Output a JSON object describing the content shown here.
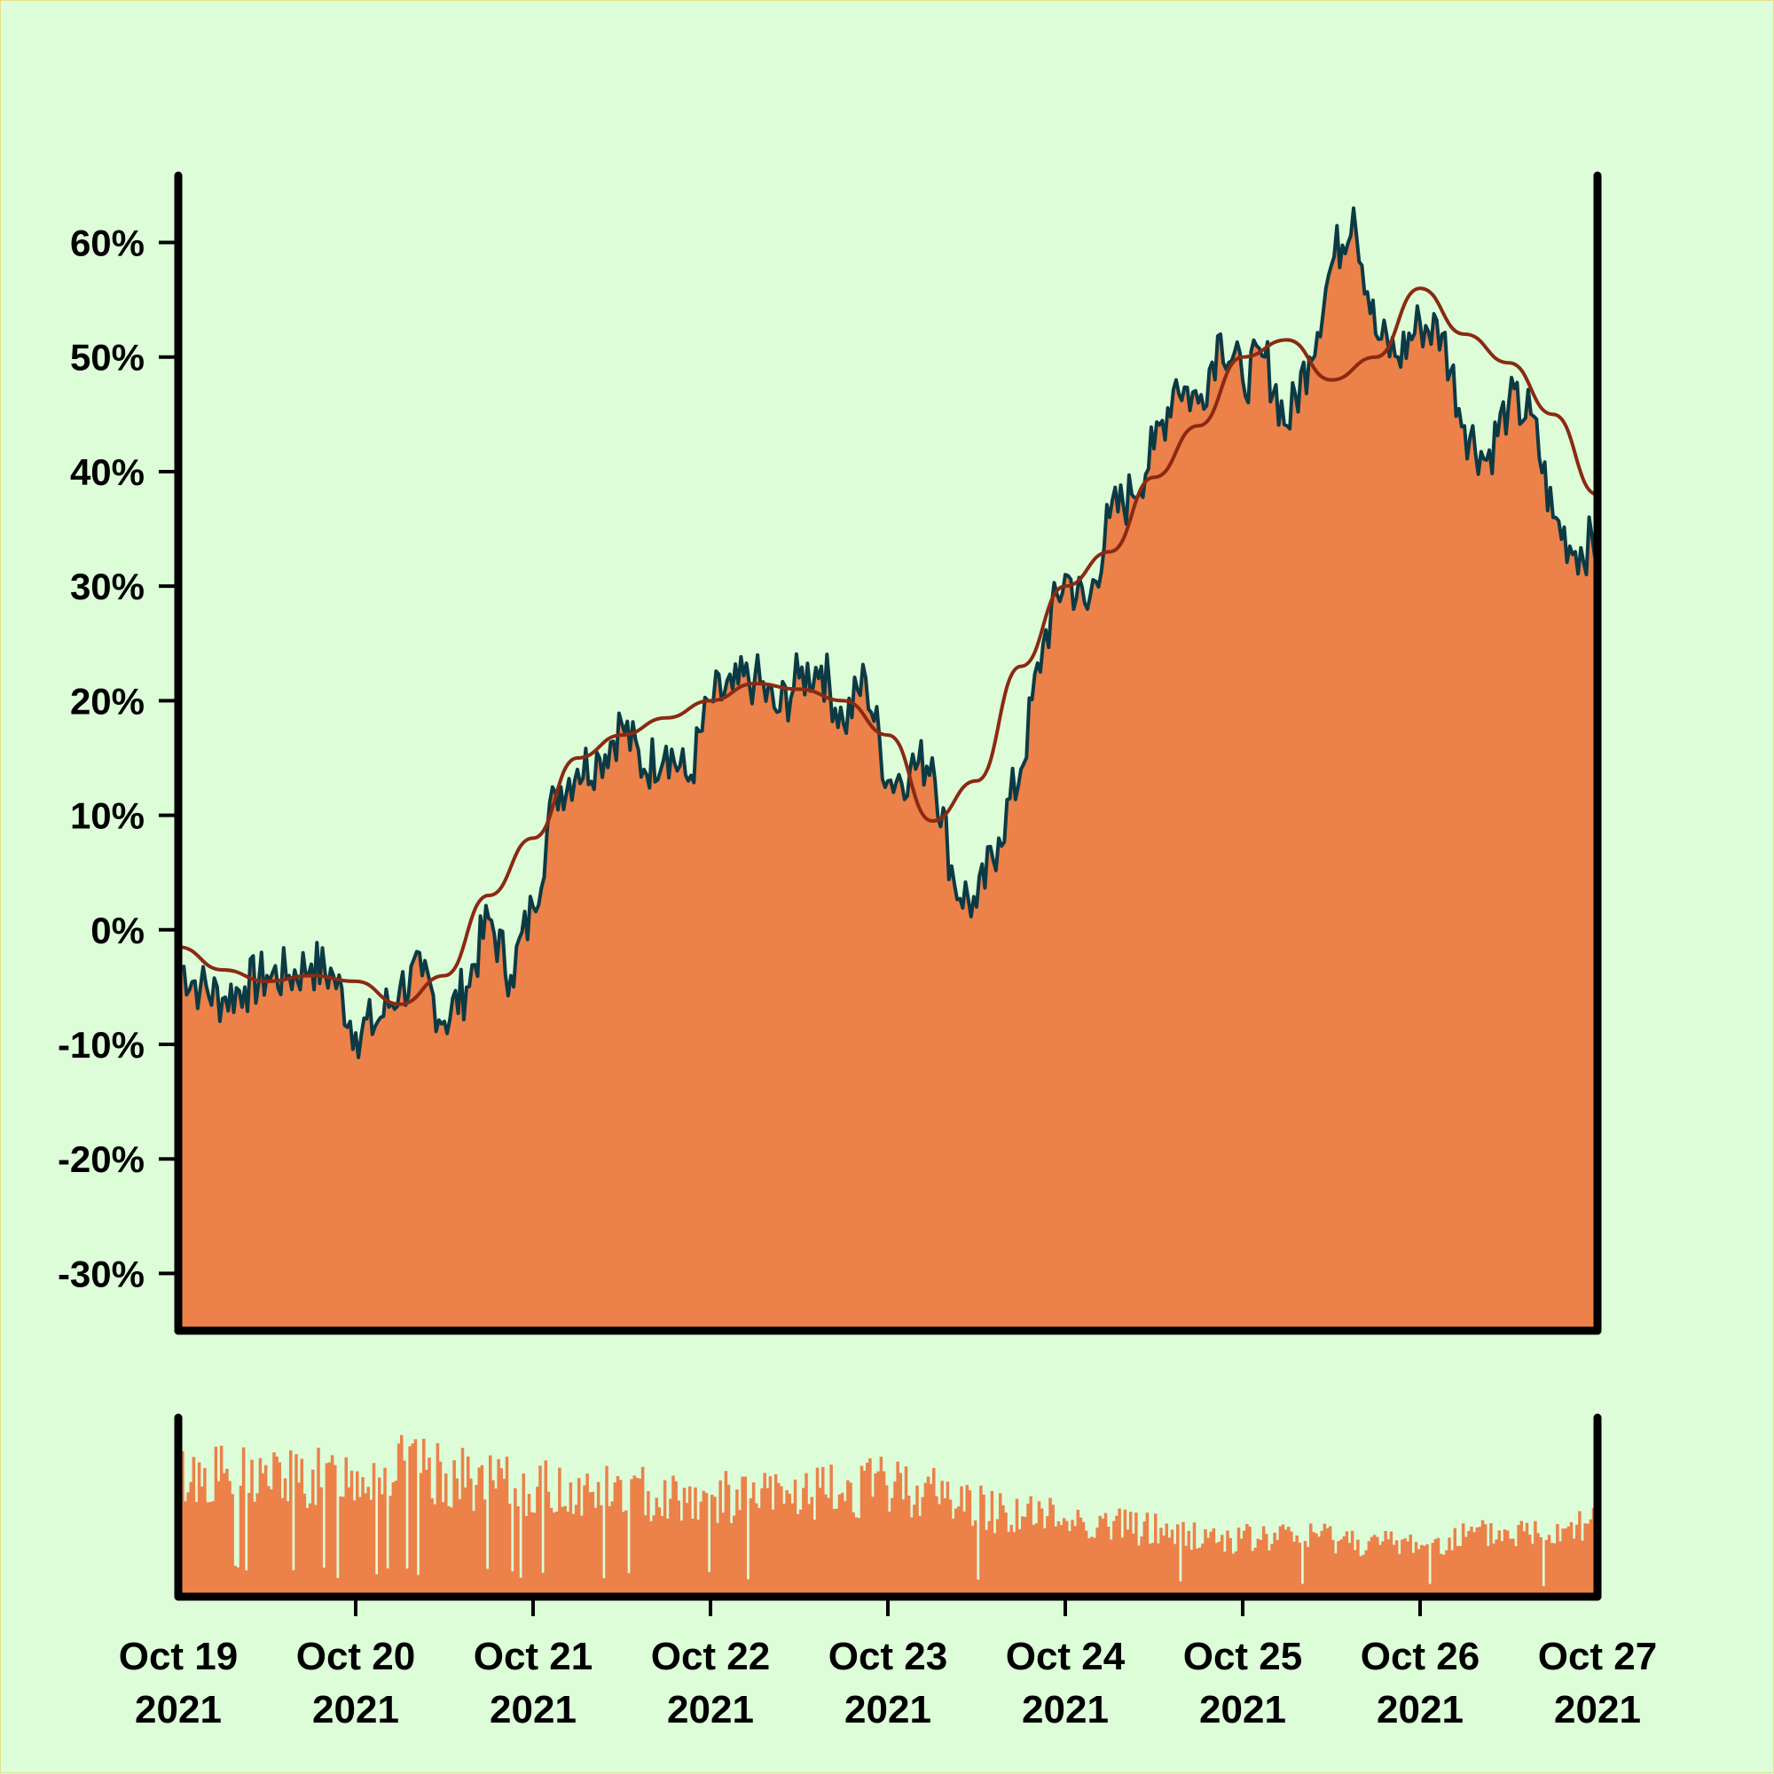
{
  "colors": {
    "background": "#dcfdd8",
    "area_fill": "#ec8149",
    "price_line": "#0c3a44",
    "moving_average": "#8a2a12",
    "volume": "#ec8149",
    "axis": "#000000"
  },
  "chart_data": [
    {
      "type": "area",
      "panel": "price",
      "y_format": "percent",
      "ylim": [
        -35,
        66
      ],
      "yticks": [
        -30,
        -20,
        -10,
        0,
        10,
        20,
        30,
        40,
        50,
        60
      ],
      "ytick_labels": [
        "-30%",
        "-20%",
        "-10%",
        "0%",
        "10%",
        "20%",
        "30%",
        "40%",
        "50%",
        "60%"
      ],
      "x_start": "2021-10-19T00:00",
      "x_end": "2021-10-27T00:00",
      "xticks": [
        "2021-10-19",
        "2021-10-20",
        "2021-10-21",
        "2021-10-22",
        "2021-10-23",
        "2021-10-24",
        "2021-10-25",
        "2021-10-26",
        "2021-10-27"
      ],
      "series": [
        {
          "role": "price",
          "x": [
            "2021-10-19T00:00",
            "2021-10-19T03:00",
            "2021-10-19T06:00",
            "2021-10-19T09:00",
            "2021-10-19T12:00",
            "2021-10-19T15:00",
            "2021-10-19T18:00",
            "2021-10-19T21:00",
            "2021-10-20T00:00",
            "2021-10-20T03:00",
            "2021-10-20T06:00",
            "2021-10-20T09:00",
            "2021-10-20T12:00",
            "2021-10-20T15:00",
            "2021-10-20T18:00",
            "2021-10-20T21:00",
            "2021-10-21T00:00",
            "2021-10-21T03:00",
            "2021-10-21T06:00",
            "2021-10-21T09:00",
            "2021-10-21T12:00",
            "2021-10-21T15:00",
            "2021-10-21T18:00",
            "2021-10-21T21:00",
            "2021-10-22T00:00",
            "2021-10-22T03:00",
            "2021-10-22T06:00",
            "2021-10-22T09:00",
            "2021-10-22T12:00",
            "2021-10-22T15:00",
            "2021-10-22T18:00",
            "2021-10-22T21:00",
            "2021-10-23T00:00",
            "2021-10-23T03:00",
            "2021-10-23T06:00",
            "2021-10-23T09:00",
            "2021-10-23T12:00",
            "2021-10-23T15:00",
            "2021-10-23T18:00",
            "2021-10-23T21:00",
            "2021-10-24T00:00",
            "2021-10-24T03:00",
            "2021-10-24T06:00",
            "2021-10-24T09:00",
            "2021-10-24T12:00",
            "2021-10-24T15:00",
            "2021-10-24T18:00",
            "2021-10-24T21:00",
            "2021-10-25T00:00",
            "2021-10-25T03:00",
            "2021-10-25T06:00",
            "2021-10-25T09:00",
            "2021-10-25T12:00",
            "2021-10-25T15:00",
            "2021-10-25T18:00",
            "2021-10-25T21:00",
            "2021-10-26T00:00",
            "2021-10-26T03:00",
            "2021-10-26T06:00",
            "2021-10-26T09:00",
            "2021-10-26T12:00",
            "2021-10-26T15:00",
            "2021-10-26T18:00",
            "2021-10-26T21:00",
            "2021-10-27T00:00"
          ],
          "values": [
            -3,
            -5,
            -6,
            -5,
            -4,
            -4,
            -3,
            -4,
            -9,
            -8,
            -5,
            -4,
            -8,
            -5,
            1,
            -4,
            2,
            12,
            14,
            15,
            18,
            14,
            16,
            13,
            20,
            21,
            22,
            19,
            22,
            23,
            18,
            22,
            13,
            14,
            15,
            4,
            2,
            8,
            14,
            25,
            31,
            28,
            36,
            38,
            42,
            48,
            46,
            52,
            48,
            50,
            44,
            50,
            58,
            63,
            52,
            50,
            53,
            52,
            44,
            41,
            46,
            45,
            36,
            33,
            34
          ]
        },
        {
          "role": "moving_average",
          "x": [
            "2021-10-19T00:00",
            "2021-10-19T06:00",
            "2021-10-19T12:00",
            "2021-10-19T18:00",
            "2021-10-20T00:00",
            "2021-10-20T06:00",
            "2021-10-20T12:00",
            "2021-10-20T18:00",
            "2021-10-21T00:00",
            "2021-10-21T06:00",
            "2021-10-21T12:00",
            "2021-10-21T18:00",
            "2021-10-22T00:00",
            "2021-10-22T06:00",
            "2021-10-22T12:00",
            "2021-10-22T18:00",
            "2021-10-23T00:00",
            "2021-10-23T06:00",
            "2021-10-23T12:00",
            "2021-10-23T18:00",
            "2021-10-24T00:00",
            "2021-10-24T06:00",
            "2021-10-24T12:00",
            "2021-10-24T18:00",
            "2021-10-25T00:00",
            "2021-10-25T06:00",
            "2021-10-25T12:00",
            "2021-10-25T18:00",
            "2021-10-26T00:00",
            "2021-10-26T06:00",
            "2021-10-26T12:00",
            "2021-10-26T18:00",
            "2021-10-27T00:00"
          ],
          "values": [
            -1.5,
            -3.5,
            -4.5,
            -4,
            -4.5,
            -6.5,
            -4,
            3,
            8,
            15,
            17,
            18.5,
            20,
            21.5,
            21,
            20,
            17,
            9.5,
            13,
            23,
            30,
            33,
            39.5,
            44,
            50,
            51.5,
            48,
            50,
            56,
            52,
            49.5,
            45,
            38
          ]
        }
      ]
    },
    {
      "type": "bar",
      "panel": "volume",
      "x_start": "2021-10-19T00:00",
      "x_end": "2021-10-27T00:00",
      "bars_per_day": 64,
      "envelope": [
        0.8,
        0.82,
        0.8,
        0.78,
        0.82,
        0.86,
        0.8,
        0.75,
        0.72,
        0.7,
        0.7,
        0.68,
        0.66,
        0.66,
        0.68,
        0.7,
        0.75,
        0.7,
        0.6,
        0.55,
        0.52,
        0.48,
        0.45,
        0.4,
        0.38,
        0.4,
        0.4,
        0.35,
        0.36,
        0.4,
        0.42,
        0.45,
        0.55
      ],
      "ylim": [
        0,
        1
      ]
    }
  ],
  "x_axis": {
    "tick_labels": [
      {
        "month_day": "Oct 19",
        "year": "2021"
      },
      {
        "month_day": "Oct 20",
        "year": "2021"
      },
      {
        "month_day": "Oct 21",
        "year": "2021"
      },
      {
        "month_day": "Oct 22",
        "year": "2021"
      },
      {
        "month_day": "Oct 23",
        "year": "2021"
      },
      {
        "month_day": "Oct 24",
        "year": "2021"
      },
      {
        "month_day": "Oct 25",
        "year": "2021"
      },
      {
        "month_day": "Oct 26",
        "year": "2021"
      },
      {
        "month_day": "Oct 27",
        "year": "2021"
      }
    ]
  }
}
